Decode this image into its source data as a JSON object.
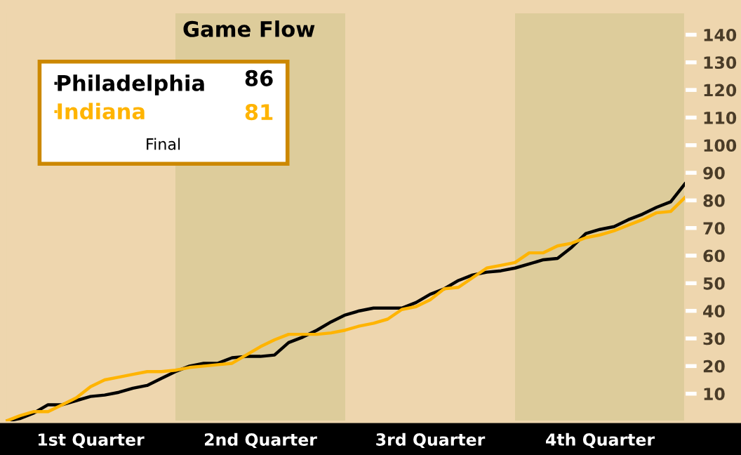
{
  "chart_data": {
    "type": "line",
    "title": "Game Flow",
    "categories": [
      null,
      null,
      null,
      null,
      null,
      null,
      "1st Quarter",
      null,
      null,
      null,
      null,
      null,
      null,
      null,
      null,
      null,
      null,
      null,
      "2nd Quarter",
      null,
      null,
      null,
      null,
      null,
      null,
      null,
      null,
      null,
      null,
      null,
      "3rd Quarter",
      null,
      null,
      null,
      null,
      null,
      null,
      null,
      null,
      null,
      null,
      null,
      "4th Quarter",
      null,
      null,
      null,
      null,
      null,
      null
    ],
    "ylim": [
      0,
      148
    ],
    "yticks": [
      10,
      20,
      30,
      40,
      50,
      60,
      70,
      80,
      90,
      100,
      110,
      120,
      130,
      140
    ],
    "series": [
      {
        "name": "Philadelphia",
        "color": "#000000",
        "values": [
          0,
          1,
          3,
          6,
          6,
          7.5,
          9,
          9.5,
          10.5,
          12,
          13,
          15.5,
          18,
          20,
          21,
          21,
          23,
          23.5,
          23.5,
          24,
          28.5,
          30.5,
          33,
          36,
          38.5,
          40,
          41,
          41,
          41,
          43,
          46,
          48,
          51,
          53,
          54,
          54.5,
          55.5,
          57,
          58.5,
          59,
          63,
          68,
          69.5,
          70.5,
          73,
          75,
          77.5,
          79.5,
          86
        ]
      },
      {
        "name": "Indiana",
        "color": "#ffb400",
        "values": [
          0,
          2,
          3.5,
          3.5,
          6,
          8.5,
          12.5,
          15,
          16,
          17,
          18,
          18,
          18.5,
          19.5,
          20,
          20.5,
          21,
          24,
          27,
          29.5,
          31.5,
          31.5,
          31.5,
          32,
          33,
          34.5,
          35.5,
          37,
          40.5,
          41.5,
          44,
          48,
          48.5,
          52,
          55.5,
          56.5,
          57.5,
          61,
          61,
          63.5,
          64.5,
          66.5,
          67.5,
          69,
          71,
          73,
          75.5,
          76,
          81
        ]
      }
    ],
    "annotations": [
      "86",
      "81",
      "Final"
    ],
    "legend": "top left",
    "grid": false,
    "marker": "none",
    "line_style": "solid"
  }
}
